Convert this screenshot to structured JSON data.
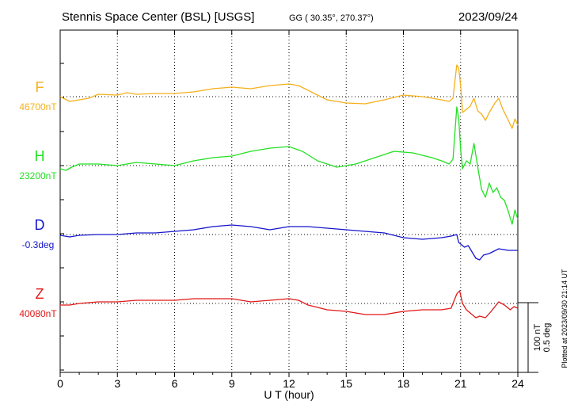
{
  "header": {
    "station": "Stennis Space Center (BSL)  [USGS]",
    "coords": "GG ( 30.35°, 270.37°)",
    "date": "2023/09/24"
  },
  "plotted": "Plotted at 2023/09/30 21:14 UT",
  "scale": {
    "nT": "100 nT",
    "deg": "0.5 deg"
  },
  "chart_data": {
    "type": "line",
    "xlabel": "U T (hour)",
    "xlim": [
      0,
      24
    ],
    "xticks": [
      "0",
      "3",
      "6",
      "9",
      "12",
      "15",
      "18",
      "21",
      "24"
    ],
    "grid": true,
    "series": [
      {
        "name": "F",
        "baseline_label": "46700nT",
        "color": "#f5b01a",
        "points": [
          [
            0,
            0
          ],
          [
            0.5,
            -6
          ],
          [
            1,
            -4
          ],
          [
            1.5,
            -2
          ],
          [
            2,
            3
          ],
          [
            3,
            2
          ],
          [
            3.5,
            5
          ],
          [
            4,
            3
          ],
          [
            5,
            4
          ],
          [
            6,
            4
          ],
          [
            7,
            6
          ],
          [
            8,
            10
          ],
          [
            9,
            12
          ],
          [
            10,
            10
          ],
          [
            11,
            14
          ],
          [
            12,
            16
          ],
          [
            12.5,
            14
          ],
          [
            13,
            8
          ],
          [
            13.5,
            2
          ],
          [
            14,
            -4
          ],
          [
            15,
            -8
          ],
          [
            16,
            -9
          ],
          [
            17,
            -4
          ],
          [
            18,
            2
          ],
          [
            19,
            0
          ],
          [
            20,
            -4
          ],
          [
            20.4,
            -6
          ],
          [
            20.6,
            -2
          ],
          [
            20.8,
            40
          ],
          [
            20.9,
            36
          ],
          [
            21,
            14
          ],
          [
            21.1,
            -20
          ],
          [
            21.3,
            -16
          ],
          [
            21.5,
            -12
          ],
          [
            21.7,
            -2
          ],
          [
            21.9,
            -18
          ],
          [
            22.1,
            -22
          ],
          [
            22.3,
            -30
          ],
          [
            22.5,
            -20
          ],
          [
            22.8,
            -8
          ],
          [
            23,
            -2
          ],
          [
            23.2,
            -15
          ],
          [
            23.5,
            -30
          ],
          [
            23.7,
            -40
          ],
          [
            23.85,
            -28
          ],
          [
            24,
            -36
          ]
        ]
      },
      {
        "name": "H",
        "baseline_label": "23200nT",
        "color": "#22e022",
        "points": [
          [
            0,
            -4
          ],
          [
            0.3,
            -6
          ],
          [
            0.6,
            -2
          ],
          [
            1,
            2
          ],
          [
            2,
            2
          ],
          [
            3,
            0
          ],
          [
            4,
            4
          ],
          [
            5,
            2
          ],
          [
            6,
            0
          ],
          [
            7,
            6
          ],
          [
            8,
            10
          ],
          [
            9,
            12
          ],
          [
            10,
            18
          ],
          [
            11,
            22
          ],
          [
            12,
            24
          ],
          [
            12.7,
            18
          ],
          [
            13.5,
            6
          ],
          [
            14.5,
            -2
          ],
          [
            15.5,
            2
          ],
          [
            16.5,
            10
          ],
          [
            17.5,
            18
          ],
          [
            18.5,
            16
          ],
          [
            19.5,
            10
          ],
          [
            20,
            6
          ],
          [
            20.4,
            2
          ],
          [
            20.6,
            8
          ],
          [
            20.8,
            74
          ],
          [
            20.9,
            60
          ],
          [
            21,
            20
          ],
          [
            21.1,
            -4
          ],
          [
            21.3,
            6
          ],
          [
            21.5,
            2
          ],
          [
            21.7,
            28
          ],
          [
            21.9,
            -2
          ],
          [
            22.1,
            -30
          ],
          [
            22.3,
            -40
          ],
          [
            22.5,
            -22
          ],
          [
            22.7,
            -34
          ],
          [
            22.9,
            -28
          ],
          [
            23.1,
            -40
          ],
          [
            23.3,
            -44
          ],
          [
            23.5,
            -58
          ],
          [
            23.7,
            -74
          ],
          [
            23.85,
            -56
          ],
          [
            24,
            -68
          ]
        ]
      },
      {
        "name": "D",
        "baseline_label": "-0.3deg",
        "color": "#1515cc",
        "points": [
          [
            0,
            -1
          ],
          [
            0.5,
            -3
          ],
          [
            1,
            -1
          ],
          [
            2,
            0
          ],
          [
            3,
            0
          ],
          [
            4,
            2
          ],
          [
            5,
            2
          ],
          [
            6,
            4
          ],
          [
            7,
            6
          ],
          [
            8,
            10
          ],
          [
            9,
            12
          ],
          [
            10,
            10
          ],
          [
            11,
            6
          ],
          [
            12,
            10
          ],
          [
            13,
            10
          ],
          [
            14,
            8
          ],
          [
            15,
            6
          ],
          [
            16,
            4
          ],
          [
            17,
            2
          ],
          [
            18,
            -4
          ],
          [
            19,
            -6
          ],
          [
            20,
            -4
          ],
          [
            20.5,
            -2
          ],
          [
            20.8,
            0
          ],
          [
            20.9,
            -10
          ],
          [
            21,
            -12
          ],
          [
            21.2,
            -16
          ],
          [
            21.4,
            -14
          ],
          [
            21.6,
            -22
          ],
          [
            21.8,
            -30
          ],
          [
            22,
            -32
          ],
          [
            22.2,
            -26
          ],
          [
            22.5,
            -24
          ],
          [
            23,
            -18
          ],
          [
            23.5,
            -20
          ],
          [
            24,
            -20
          ]
        ]
      },
      {
        "name": "Z",
        "baseline_label": "40080nT",
        "color": "#e01818",
        "points": [
          [
            0,
            -2
          ],
          [
            0.5,
            -2
          ],
          [
            1,
            0
          ],
          [
            2,
            2
          ],
          [
            3,
            2
          ],
          [
            4,
            4
          ],
          [
            5,
            4
          ],
          [
            6,
            4
          ],
          [
            7,
            6
          ],
          [
            8,
            6
          ],
          [
            9,
            6
          ],
          [
            10,
            2
          ],
          [
            11,
            4
          ],
          [
            12,
            6
          ],
          [
            12.5,
            4
          ],
          [
            13,
            -2
          ],
          [
            14,
            -8
          ],
          [
            15,
            -10
          ],
          [
            16,
            -14
          ],
          [
            17,
            -14
          ],
          [
            18,
            -10
          ],
          [
            19,
            -8
          ],
          [
            20,
            -8
          ],
          [
            20.5,
            -6
          ],
          [
            20.8,
            12
          ],
          [
            20.95,
            16
          ],
          [
            21.1,
            0
          ],
          [
            21.3,
            -8
          ],
          [
            21.5,
            -12
          ],
          [
            21.8,
            -18
          ],
          [
            22,
            -16
          ],
          [
            22.3,
            -18
          ],
          [
            22.6,
            -10
          ],
          [
            23,
            2
          ],
          [
            23.3,
            -2
          ],
          [
            23.6,
            -8
          ],
          [
            23.8,
            -4
          ],
          [
            24,
            -6
          ]
        ]
      }
    ]
  }
}
